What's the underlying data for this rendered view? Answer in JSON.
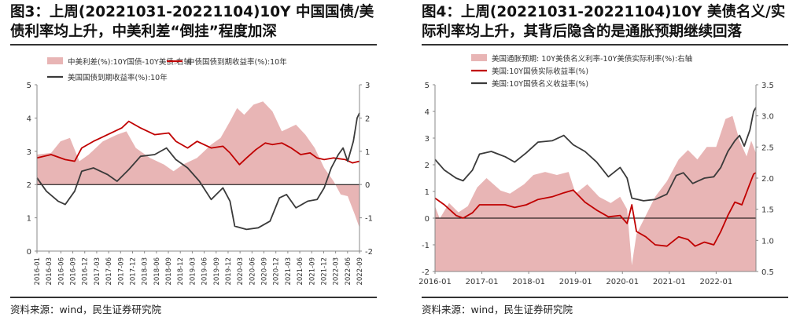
{
  "fig3": {
    "title_line1": "图3：上周(20221031-20221104)10Y 中国国债/美",
    "title_line2": "债利率均上升，中美利差“倒挂”程度加深",
    "source": "资料来源：wind，民生证券研究院"
  },
  "fig4": {
    "title_line1": "图4：上周(20221031-20221104)10Y 美债名义/实",
    "title_line2": "际利率均上升，其背后隐含的是通胀预期继续回落",
    "source": "资料来源：wind，民生证券研究院"
  },
  "colors": {
    "area": "#e8b5b5",
    "red": "#c00000",
    "black": "#3a3a3a",
    "axis": "#888888"
  },
  "chart_data": [
    {
      "type": "line",
      "legend": [
        {
          "name": "中美利差(%):10Y国债-10Y美债:右轴",
          "kind": "area"
        },
        {
          "name": "中债国债到期收益率(%):10年",
          "kind": "red"
        },
        {
          "name": "美国国债到期收益率(%):10年",
          "kind": "black"
        }
      ],
      "left_axis": {
        "min": 0,
        "max": 5,
        "ticks": [
          0,
          1,
          2,
          3,
          4,
          5
        ]
      },
      "right_axis": {
        "min": -2,
        "max": 3,
        "ticks": [
          -2,
          -1,
          0,
          1,
          2,
          3
        ]
      },
      "x_ticks": [
        "2016-01",
        "2016-03",
        "2016-06",
        "2016-09",
        "2016-12",
        "2017-03",
        "2017-06",
        "2017-09",
        "2017-12",
        "2018-03",
        "2018-06",
        "2018-09",
        "2018-12",
        "2019-03",
        "2019-06",
        "2019-09",
        "2019-12",
        "2020-03",
        "2020-06",
        "2020-09",
        "2020-12",
        "2021-03",
        "2021-06",
        "2021-09",
        "2021-12",
        "2022-03",
        "2022-06",
        "2022-09"
      ],
      "t_start": 2016.0,
      "t_end": 2022.85,
      "series": [
        {
          "name": "中美利差(%):10Y国债-10Y美债:右轴",
          "axis": "right",
          "kind": "area",
          "points": [
            [
              2016.0,
              0.9
            ],
            [
              2016.3,
              0.95
            ],
            [
              2016.5,
              1.3
            ],
            [
              2016.7,
              1.4
            ],
            [
              2016.9,
              0.7
            ],
            [
              2017.1,
              0.9
            ],
            [
              2017.4,
              1.3
            ],
            [
              2017.7,
              1.5
            ],
            [
              2017.9,
              1.6
            ],
            [
              2018.1,
              1.1
            ],
            [
              2018.4,
              0.8
            ],
            [
              2018.7,
              0.6
            ],
            [
              2018.9,
              0.4
            ],
            [
              2019.1,
              0.6
            ],
            [
              2019.4,
              0.8
            ],
            [
              2019.7,
              1.2
            ],
            [
              2019.9,
              1.4
            ],
            [
              2020.1,
              1.9
            ],
            [
              2020.25,
              2.3
            ],
            [
              2020.4,
              2.1
            ],
            [
              2020.6,
              2.4
            ],
            [
              2020.8,
              2.5
            ],
            [
              2021.0,
              2.2
            ],
            [
              2021.2,
              1.6
            ],
            [
              2021.5,
              1.8
            ],
            [
              2021.7,
              1.5
            ],
            [
              2021.9,
              1.1
            ],
            [
              2022.1,
              0.5
            ],
            [
              2022.3,
              0.1
            ],
            [
              2022.45,
              -0.3
            ],
            [
              2022.6,
              -0.35
            ],
            [
              2022.75,
              -0.9
            ],
            [
              2022.85,
              -1.3
            ]
          ]
        },
        {
          "name": "中债国债到期收益率(%):10年",
          "axis": "left",
          "kind": "red",
          "points": [
            [
              2016.0,
              2.8
            ],
            [
              2016.3,
              2.9
            ],
            [
              2016.6,
              2.75
            ],
            [
              2016.8,
              2.7
            ],
            [
              2016.95,
              3.1
            ],
            [
              2017.2,
              3.3
            ],
            [
              2017.5,
              3.5
            ],
            [
              2017.8,
              3.7
            ],
            [
              2017.95,
              3.9
            ],
            [
              2018.2,
              3.7
            ],
            [
              2018.5,
              3.5
            ],
            [
              2018.8,
              3.55
            ],
            [
              2018.95,
              3.3
            ],
            [
              2019.2,
              3.1
            ],
            [
              2019.4,
              3.3
            ],
            [
              2019.7,
              3.1
            ],
            [
              2019.95,
              3.15
            ],
            [
              2020.1,
              2.95
            ],
            [
              2020.3,
              2.6
            ],
            [
              2020.45,
              2.8
            ],
            [
              2020.65,
              3.05
            ],
            [
              2020.85,
              3.25
            ],
            [
              2021.0,
              3.2
            ],
            [
              2021.2,
              3.25
            ],
            [
              2021.4,
              3.1
            ],
            [
              2021.6,
              2.9
            ],
            [
              2021.8,
              2.95
            ],
            [
              2021.95,
              2.8
            ],
            [
              2022.1,
              2.75
            ],
            [
              2022.3,
              2.8
            ],
            [
              2022.55,
              2.75
            ],
            [
              2022.7,
              2.65
            ],
            [
              2022.85,
              2.7
            ]
          ]
        },
        {
          "name": "美国国债到期收益率(%):10年",
          "axis": "left",
          "kind": "black",
          "points": [
            [
              2016.0,
              2.2
            ],
            [
              2016.2,
              1.8
            ],
            [
              2016.45,
              1.5
            ],
            [
              2016.6,
              1.4
            ],
            [
              2016.8,
              1.8
            ],
            [
              2016.95,
              2.4
            ],
            [
              2017.2,
              2.5
            ],
            [
              2017.5,
              2.3
            ],
            [
              2017.7,
              2.1
            ],
            [
              2017.95,
              2.45
            ],
            [
              2018.2,
              2.85
            ],
            [
              2018.5,
              2.9
            ],
            [
              2018.75,
              3.1
            ],
            [
              2018.95,
              2.75
            ],
            [
              2019.2,
              2.5
            ],
            [
              2019.45,
              2.1
            ],
            [
              2019.7,
              1.55
            ],
            [
              2019.95,
              1.9
            ],
            [
              2020.1,
              1.5
            ],
            [
              2020.2,
              0.75
            ],
            [
              2020.45,
              0.65
            ],
            [
              2020.7,
              0.7
            ],
            [
              2020.95,
              0.9
            ],
            [
              2021.15,
              1.6
            ],
            [
              2021.3,
              1.7
            ],
            [
              2021.5,
              1.3
            ],
            [
              2021.75,
              1.5
            ],
            [
              2021.95,
              1.55
            ],
            [
              2022.1,
              1.9
            ],
            [
              2022.25,
              2.5
            ],
            [
              2022.4,
              2.9
            ],
            [
              2022.5,
              3.1
            ],
            [
              2022.6,
              2.7
            ],
            [
              2022.72,
              3.3
            ],
            [
              2022.8,
              4.0
            ],
            [
              2022.85,
              4.15
            ]
          ]
        }
      ]
    },
    {
      "type": "line",
      "legend": [
        {
          "name": "美国通胀预期: 10Y美债名义利率-10Y美债实际利率(%):右轴",
          "kind": "area"
        },
        {
          "name": "美国:10Y国债实际收益率(%)",
          "kind": "red"
        },
        {
          "name": "美国:10Y国债名义收益率(%)",
          "kind": "black"
        }
      ],
      "left_axis": {
        "min": -2,
        "max": 5,
        "ticks": [
          -2,
          -1,
          0,
          1,
          2,
          3,
          4,
          5
        ]
      },
      "right_axis": {
        "min": 0.5,
        "max": 3.5,
        "ticks": [
          0.5,
          1.0,
          1.5,
          2.0,
          2.5,
          3.0,
          3.5
        ]
      },
      "x_ticks": [
        "2016-01",
        "2017-01",
        "2018-01",
        "2019-01",
        "2020-01",
        "2021-01",
        "2022-01"
      ],
      "t_start": 2016.0,
      "t_end": 2022.85,
      "series": [
        {
          "name": "美国通胀预期: 10Y美债名义利率-10Y美债实际利率(%):右轴",
          "axis": "right",
          "kind": "area",
          "points": [
            [
              2016.0,
              1.55
            ],
            [
              2016.1,
              1.35
            ],
            [
              2016.3,
              1.6
            ],
            [
              2016.5,
              1.45
            ],
            [
              2016.7,
              1.55
            ],
            [
              2016.9,
              1.85
            ],
            [
              2017.1,
              2.0
            ],
            [
              2017.4,
              1.8
            ],
            [
              2017.6,
              1.75
            ],
            [
              2017.9,
              1.9
            ],
            [
              2018.1,
              2.05
            ],
            [
              2018.35,
              2.1
            ],
            [
              2018.6,
              2.05
            ],
            [
              2018.85,
              2.1
            ],
            [
              2019.0,
              1.75
            ],
            [
              2019.25,
              1.9
            ],
            [
              2019.5,
              1.7
            ],
            [
              2019.75,
              1.6
            ],
            [
              2019.95,
              1.7
            ],
            [
              2020.1,
              1.5
            ],
            [
              2020.2,
              0.6
            ],
            [
              2020.3,
              1.1
            ],
            [
              2020.5,
              1.4
            ],
            [
              2020.7,
              1.7
            ],
            [
              2020.95,
              1.95
            ],
            [
              2021.2,
              2.3
            ],
            [
              2021.4,
              2.45
            ],
            [
              2021.6,
              2.3
            ],
            [
              2021.8,
              2.5
            ],
            [
              2022.0,
              2.5
            ],
            [
              2022.2,
              2.95
            ],
            [
              2022.35,
              3.0
            ],
            [
              2022.5,
              2.6
            ],
            [
              2022.65,
              2.35
            ],
            [
              2022.75,
              2.6
            ],
            [
              2022.85,
              2.4
            ]
          ]
        },
        {
          "name": "美国:10Y国债实际收益率(%)",
          "axis": "left",
          "kind": "red",
          "points": [
            [
              2016.0,
              0.75
            ],
            [
              2016.2,
              0.5
            ],
            [
              2016.45,
              0.1
            ],
            [
              2016.6,
              0.0
            ],
            [
              2016.8,
              0.2
            ],
            [
              2016.95,
              0.5
            ],
            [
              2017.2,
              0.5
            ],
            [
              2017.5,
              0.5
            ],
            [
              2017.7,
              0.4
            ],
            [
              2017.95,
              0.5
            ],
            [
              2018.2,
              0.7
            ],
            [
              2018.5,
              0.8
            ],
            [
              2018.75,
              0.95
            ],
            [
              2018.95,
              1.05
            ],
            [
              2019.2,
              0.6
            ],
            [
              2019.45,
              0.3
            ],
            [
              2019.7,
              0.05
            ],
            [
              2019.95,
              0.1
            ],
            [
              2020.1,
              -0.2
            ],
            [
              2020.2,
              0.5
            ],
            [
              2020.3,
              -0.5
            ],
            [
              2020.5,
              -0.7
            ],
            [
              2020.7,
              -1.0
            ],
            [
              2020.95,
              -1.05
            ],
            [
              2021.2,
              -0.7
            ],
            [
              2021.4,
              -0.8
            ],
            [
              2021.55,
              -1.05
            ],
            [
              2021.75,
              -0.9
            ],
            [
              2021.95,
              -1.0
            ],
            [
              2022.1,
              -0.5
            ],
            [
              2022.25,
              0.1
            ],
            [
              2022.4,
              0.6
            ],
            [
              2022.55,
              0.5
            ],
            [
              2022.7,
              1.2
            ],
            [
              2022.8,
              1.65
            ],
            [
              2022.85,
              1.7
            ]
          ]
        },
        {
          "name": "美国:10Y国债名义收益率(%)",
          "axis": "left",
          "kind": "black",
          "points": [
            [
              2016.0,
              2.2
            ],
            [
              2016.2,
              1.8
            ],
            [
              2016.45,
              1.5
            ],
            [
              2016.6,
              1.4
            ],
            [
              2016.8,
              1.8
            ],
            [
              2016.95,
              2.4
            ],
            [
              2017.2,
              2.5
            ],
            [
              2017.5,
              2.3
            ],
            [
              2017.7,
              2.1
            ],
            [
              2017.95,
              2.45
            ],
            [
              2018.2,
              2.85
            ],
            [
              2018.5,
              2.9
            ],
            [
              2018.75,
              3.1
            ],
            [
              2018.95,
              2.75
            ],
            [
              2019.2,
              2.5
            ],
            [
              2019.45,
              2.1
            ],
            [
              2019.7,
              1.55
            ],
            [
              2019.95,
              1.9
            ],
            [
              2020.1,
              1.5
            ],
            [
              2020.2,
              0.75
            ],
            [
              2020.45,
              0.65
            ],
            [
              2020.7,
              0.7
            ],
            [
              2020.95,
              0.9
            ],
            [
              2021.15,
              1.6
            ],
            [
              2021.3,
              1.7
            ],
            [
              2021.5,
              1.3
            ],
            [
              2021.75,
              1.5
            ],
            [
              2021.95,
              1.55
            ],
            [
              2022.1,
              1.9
            ],
            [
              2022.25,
              2.5
            ],
            [
              2022.4,
              2.9
            ],
            [
              2022.5,
              3.1
            ],
            [
              2022.6,
              2.7
            ],
            [
              2022.72,
              3.3
            ],
            [
              2022.8,
              4.0
            ],
            [
              2022.85,
              4.15
            ]
          ]
        }
      ]
    }
  ]
}
